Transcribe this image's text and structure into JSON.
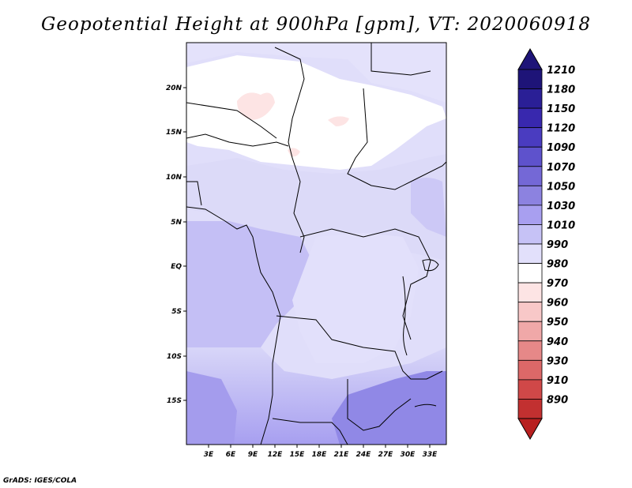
{
  "title": "Geopotential Height at 900hPa [gpm], VT: 2020060918",
  "footer": "GrADS: IGES/COLA",
  "map": {
    "variable": "Geopotential Height",
    "level": "900hPa",
    "units": "gpm",
    "valid_time": "2020060918",
    "lon_labels": [
      "3E",
      "6E",
      "9E",
      "12E",
      "15E",
      "18E",
      "21E",
      "24E",
      "27E",
      "30E",
      "33E"
    ],
    "lat_labels": [
      "20N",
      "15N",
      "10N",
      "5N",
      "EQ",
      "5S",
      "10S",
      "15S"
    ]
  },
  "colorbar": {
    "levels": [
      {
        "label": "1210",
        "color": "#1e1478"
      },
      {
        "label": "1180",
        "color": "#2a1f96"
      },
      {
        "label": "1150",
        "color": "#3828ae"
      },
      {
        "label": "1120",
        "color": "#4a3cc0"
      },
      {
        "label": "1090",
        "color": "#5e52cc"
      },
      {
        "label": "1070",
        "color": "#7468d6"
      },
      {
        "label": "1050",
        "color": "#8c82e0"
      },
      {
        "label": "1030",
        "color": "#a89ff0"
      },
      {
        "label": "1010",
        "color": "#c6c2f6"
      },
      {
        "label": "990",
        "color": "#e2e0fb"
      },
      {
        "label": "980",
        "color": "#ffffff"
      },
      {
        "label": "970",
        "color": "#fde4e4"
      },
      {
        "label": "960",
        "color": "#f8c8c8"
      },
      {
        "label": "950",
        "color": "#f0a8a8"
      },
      {
        "label": "940",
        "color": "#e68888"
      },
      {
        "label": "930",
        "color": "#dc6868"
      },
      {
        "label": "910",
        "color": "#d04848"
      },
      {
        "label": "890",
        "color": "#c23030"
      }
    ],
    "top_color": "#1e1478",
    "bottom_color": "#b82020"
  }
}
